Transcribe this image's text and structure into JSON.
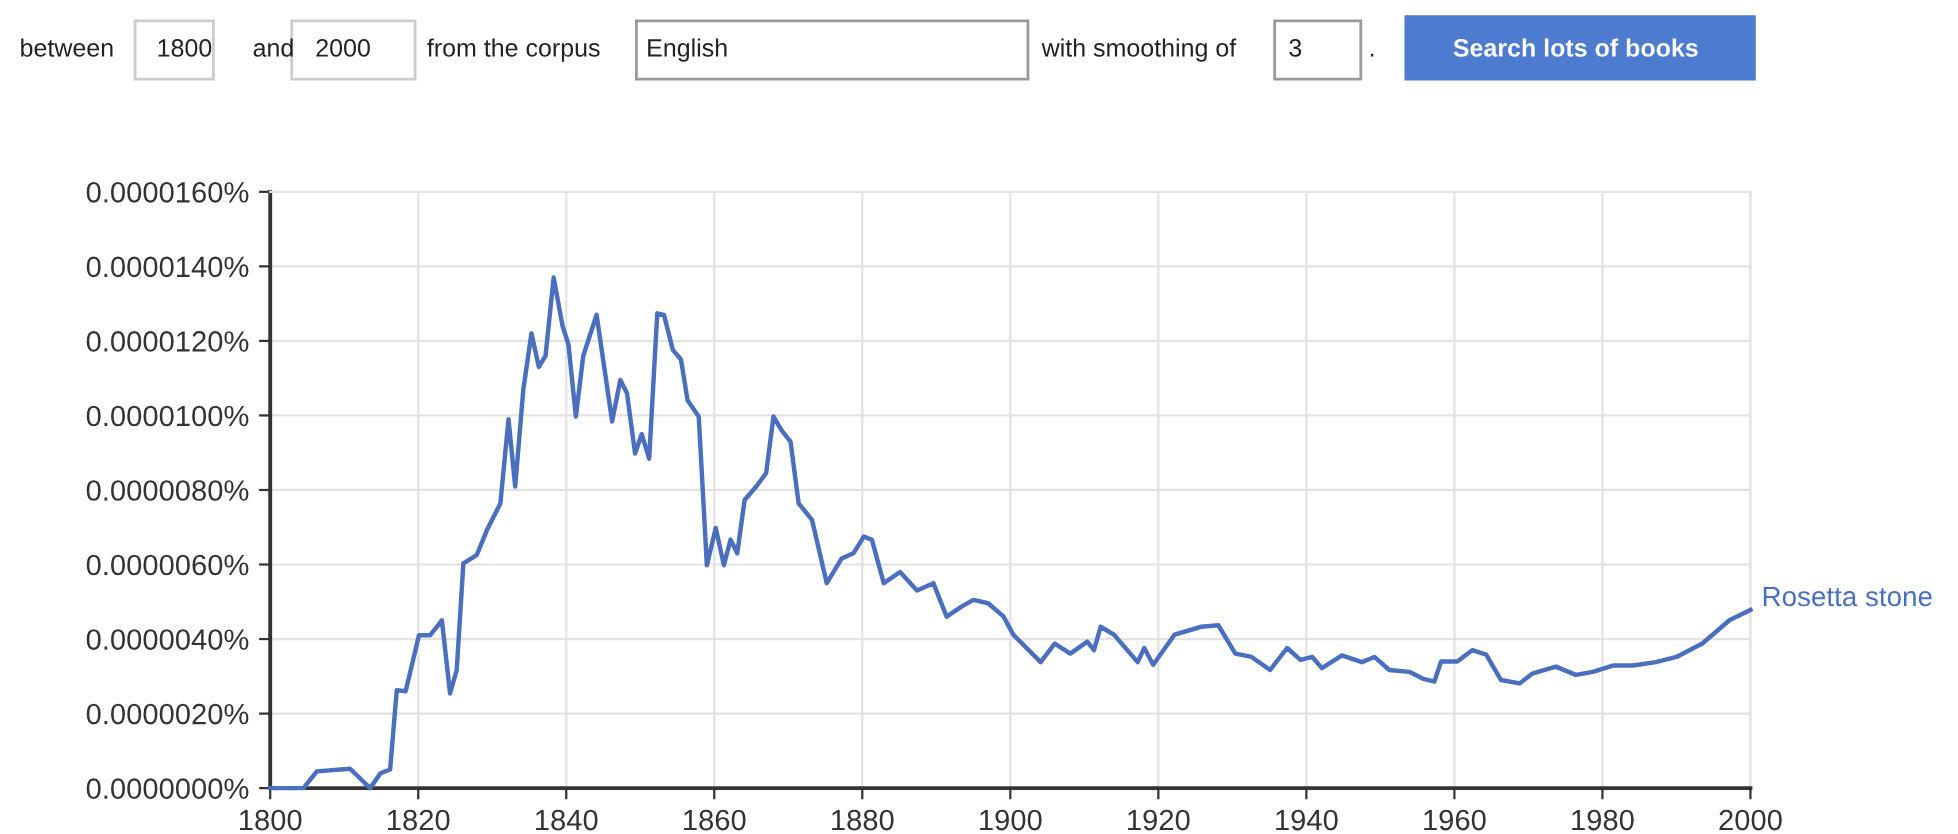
{
  "chart_data": {
    "type": "line",
    "annotations": [
      "between",
      "1800",
      "and",
      "2000",
      "from the corpus",
      "English",
      "with smoothing of",
      "3",
      ".",
      "Search lots of books"
    ],
    "xlim": [
      1800,
      2000
    ],
    "xticks": [
      1800,
      1820,
      1840,
      1860,
      1880,
      1900,
      1920,
      1940,
      1960,
      1980,
      2000
    ],
    "ylim": [
      0,
      1.6e-05
    ],
    "yticks": [
      {
        "value": 0,
        "label": "0.0000000%"
      },
      {
        "value": 2e-06,
        "label": "0.0000020%"
      },
      {
        "value": 4e-06,
        "label": "0.0000040%"
      },
      {
        "value": 6e-06,
        "label": "0.0000060%"
      },
      {
        "value": 8e-06,
        "label": "0.0000080%"
      },
      {
        "value": 1e-05,
        "label": "0.0000100%"
      },
      {
        "value": 1.2e-05,
        "label": "0.0000120%"
      },
      {
        "value": 1.4e-05,
        "label": "0.0000140%"
      },
      {
        "value": 1.6e-05,
        "label": "0.0000160%"
      }
    ],
    "grid": true,
    "legend": false,
    "line_style": "solid",
    "series": [
      {
        "name": "Rosetta stone",
        "color": "#4a6fbf",
        "x": [
          1800,
          1804.5,
          1806.3,
          1810.8,
          1813.5,
          1814.9,
          1816.2,
          1817.1,
          1818.3,
          1820.1,
          1821.6,
          1823.2,
          1824.3,
          1825.2,
          1826.1,
          1827.9,
          1829.3,
          1831.1,
          1832.2,
          1833.1,
          1834.2,
          1835.3,
          1836.3,
          1837.2,
          1838.3,
          1839.5,
          1840.3,
          1841.3,
          1842.3,
          1844.1,
          1846.2,
          1847.3,
          1848.2,
          1849.3,
          1850.2,
          1851.2,
          1852.3,
          1853.2,
          1854.4,
          1855.5,
          1856.4,
          1857.9,
          1859.0,
          1860.2,
          1861.3,
          1862.2,
          1863.1,
          1864.1,
          1865.7,
          1867.0,
          1868.0,
          1869.1,
          1870.3,
          1871.4,
          1873.2,
          1875.2,
          1877.2,
          1878.8,
          1880.2,
          1881.3,
          1882.9,
          1885.1,
          1887.4,
          1889.6,
          1891.4,
          1893.4,
          1895.0,
          1897.0,
          1899.1,
          1900.4,
          1904.1,
          1906.0,
          1908.1,
          1910.4,
          1911.3,
          1912.2,
          1914.0,
          1917.2,
          1918.1,
          1919.3,
          1922.2,
          1925.8,
          1928.1,
          1930.4,
          1932.6,
          1935.1,
          1937.4,
          1939.2,
          1940.8,
          1942.1,
          1944.8,
          1947.5,
          1949.2,
          1951.2,
          1953.9,
          1955.7,
          1957.3,
          1958.2,
          1960.4,
          1962.4,
          1964.3,
          1966.3,
          1968.8,
          1970.6,
          1973.7,
          1976.4,
          1978.7,
          1981.4,
          1984.1,
          1987.2,
          1990.0,
          1993.5,
          1997.2,
          2000
        ],
        "values": [
          0,
          0,
          4.5e-07,
          5.2e-07,
          0,
          4e-07,
          5e-07,
          2.63e-06,
          2.6e-06,
          4.1e-06,
          4.1e-06,
          4.5e-06,
          2.54e-06,
          3.17e-06,
          6.03e-06,
          6.25e-06,
          6.93e-06,
          7.64e-06,
          9.9e-06,
          8.09e-06,
          1.07e-05,
          1.22e-05,
          1.13e-05,
          1.16e-05,
          1.37e-05,
          1.24e-05,
          1.19e-05,
          9.97e-06,
          1.16e-05,
          1.27e-05,
          9.84e-06,
          1.095e-05,
          1.06e-05,
          8.98e-06,
          9.5e-06,
          8.84e-06,
          1.274e-05,
          1.27e-05,
          1.176e-05,
          1.15e-05,
          1.04e-05,
          9.97e-06,
          5.98e-06,
          6.98e-06,
          5.98e-06,
          6.67e-06,
          6.3e-06,
          7.73e-06,
          8.1e-06,
          8.45e-06,
          9.97e-06,
          9.6e-06,
          9.3e-06,
          7.64e-06,
          7.2e-06,
          5.5e-06,
          6.16e-06,
          6.3e-06,
          6.75e-06,
          6.66e-06,
          5.5e-06,
          5.8e-06,
          5.3e-06,
          5.5e-06,
          4.6e-06,
          4.87e-06,
          5.05e-06,
          4.96e-06,
          4.6e-06,
          4.12e-06,
          3.38e-06,
          3.88e-06,
          3.61e-06,
          3.93e-06,
          3.7e-06,
          4.33e-06,
          4.12e-06,
          3.38e-06,
          3.76e-06,
          3.31e-06,
          4.12e-06,
          4.33e-06,
          4.37e-06,
          3.61e-06,
          3.52e-06,
          3.17e-06,
          3.76e-06,
          3.44e-06,
          3.52e-06,
          3.22e-06,
          3.56e-06,
          3.38e-06,
          3.52e-06,
          3.17e-06,
          3.12e-06,
          2.94e-06,
          2.86e-06,
          3.4e-06,
          3.4e-06,
          3.7e-06,
          3.58e-06,
          2.9e-06,
          2.81e-06,
          3.08e-06,
          3.26e-06,
          3.04e-06,
          3.12e-06,
          3.29e-06,
          3.29e-06,
          3.38e-06,
          3.52e-06,
          3.88e-06,
          4.51e-06,
          4.78e-06
        ]
      }
    ]
  }
}
